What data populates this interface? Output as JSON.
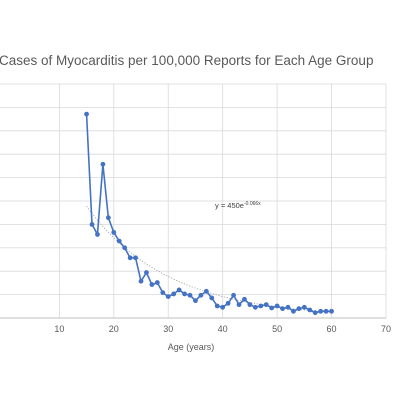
{
  "chart_data": {
    "type": "scatter",
    "title": "Cases of Myocarditis per 100,000 Reports for Each Age Group",
    "xlabel": "Age (years)",
    "ylabel": "",
    "xlim": [
      0,
      70
    ],
    "ylim": [
      0,
      350
    ],
    "xticks": [
      10,
      20,
      30,
      40,
      50,
      60,
      70
    ],
    "grid": true,
    "trendline": {
      "type": "exponential",
      "a": 450,
      "b": -0.066
    },
    "equation": {
      "base": "y = 450e",
      "exponent": "-0.066x"
    },
    "series": [
      {
        "color": "#4472c4",
        "x": [
          15,
          16,
          17,
          18,
          19,
          20,
          21,
          22,
          23,
          24,
          25,
          26,
          27,
          28,
          29,
          30,
          31,
          32,
          33,
          34,
          35,
          36,
          37,
          38,
          39,
          40,
          41,
          42,
          43,
          44,
          45,
          46,
          47,
          48,
          49,
          50,
          51,
          52,
          53,
          54,
          55,
          56,
          57,
          58,
          59,
          60
        ],
        "y": [
          305,
          140,
          125,
          230,
          150,
          128,
          115,
          105,
          90,
          90,
          55,
          68,
          50,
          53,
          38,
          32,
          36,
          42,
          36,
          34,
          26,
          34,
          40,
          30,
          18,
          16,
          22,
          34,
          20,
          28,
          20,
          16,
          18,
          20,
          15,
          18,
          14,
          16,
          10,
          14,
          16,
          12,
          8,
          10,
          10,
          10
        ]
      }
    ]
  }
}
